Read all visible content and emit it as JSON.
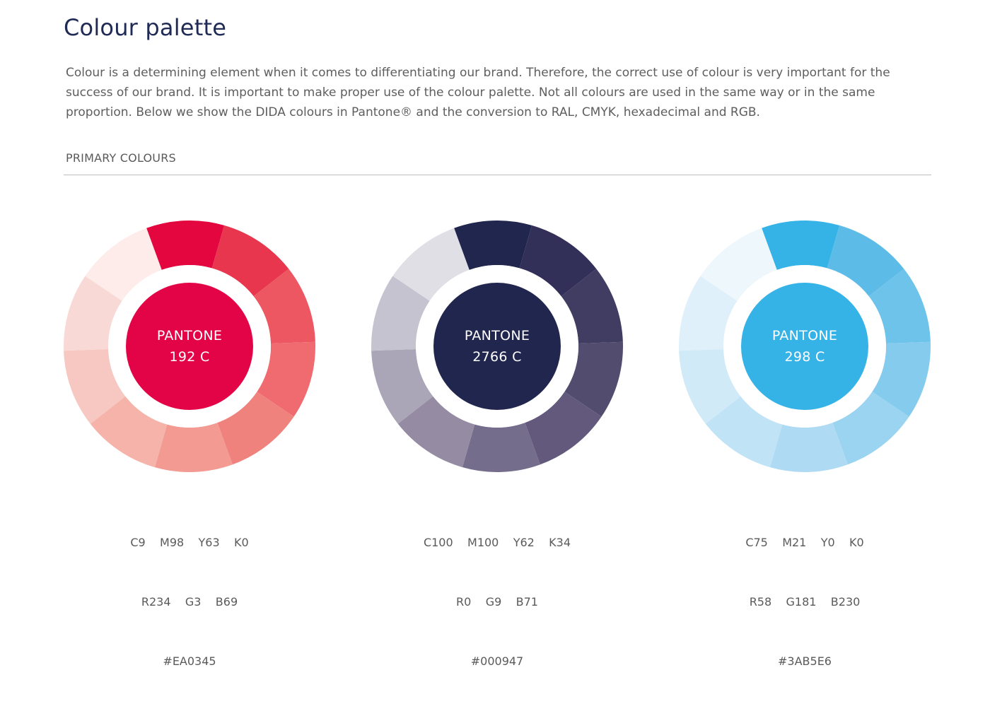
{
  "header": {
    "title": "Colour palette",
    "intro": "Colour is a determining element when it comes to differentiating our brand. Therefore, the correct use of colour is very important for the success of our brand. It is important to make proper use of the colour palette. Not all colours are used in the same way or in the same proportion. Below we show the DIDA colours in Pantone® and the conversion to RAL, CMYK, hexadecimal and RGB."
  },
  "section": {
    "label": "PRIMARY COLOURS"
  },
  "swatches": [
    {
      "pantone_label": "PANTONE",
      "pantone_code": "192 C",
      "cmyk": "C9    M98    Y63    K0",
      "rgb": "R234    G3    B69",
      "hex": "#EA0345",
      "center_color": "#E30447",
      "segments": [
        "#E3063F",
        "#E8364E",
        "#EC5762",
        "#EF6B6F",
        "#F0827D",
        "#F39A92",
        "#F5B3AA",
        "#F7C8C1",
        "#F9D9D5",
        "#FDECE9"
      ]
    },
    {
      "pantone_label": "PANTONE",
      "pantone_code": "2766 C",
      "cmyk": "C100    M100    Y62    K34",
      "rgb": "R0    G9    B71",
      "hex": "#000947",
      "center_color": "#21264E",
      "segments": [
        "#21264F",
        "#322F58",
        "#403C62",
        "#524C6F",
        "#62597C",
        "#756D8C",
        "#958BA3",
        "#AAA5B7",
        "#C6C3D0",
        "#E1DFE6"
      ]
    },
    {
      "pantone_label": "PANTONE",
      "pantone_code": "298 C",
      "cmyk": "C75    M21    Y0    K0",
      "rgb": "R58    G181    B230",
      "hex": "#3AB5E6",
      "center_color": "#35B2E6",
      "segments": [
        "#35B2E6",
        "#5DBBE8",
        "#6EC3EB",
        "#85CBEE",
        "#9BD4F0",
        "#AEDBF3",
        "#C1E3F6",
        "#D1EAF8",
        "#E0F0FA",
        "#EEF7FC"
      ]
    }
  ]
}
